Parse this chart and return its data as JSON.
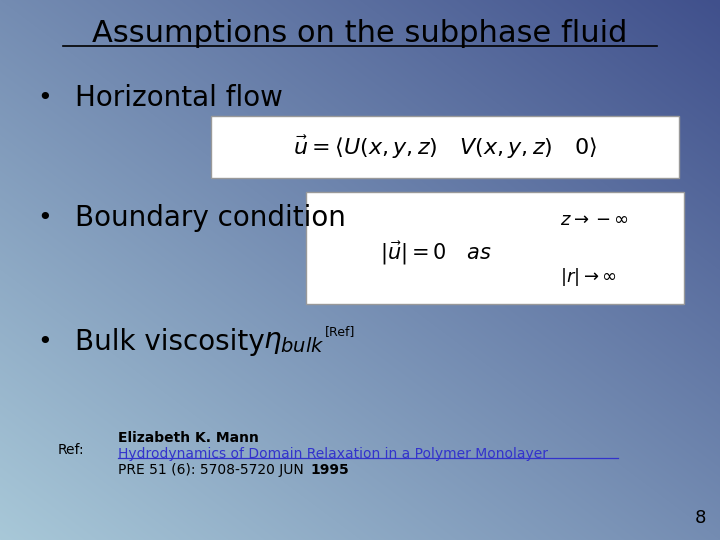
{
  "title": "Assumptions on the subphase fluid",
  "bullet1": "Horizontal flow",
  "bullet2": "Boundary condition",
  "bullet3": "Bulk viscosity ",
  "bullet3_ref": "[Ref]",
  "ref_label": "Ref:",
  "ref_author": "Elizabeth K. Mann",
  "ref_title": "Hydrodynamics of Domain Relaxation in a Polymer Monolayer",
  "ref_journal": "PRE 51 (6): 5708-5720 JUN ",
  "ref_year": "1995",
  "slide_number": "8",
  "link_color": "#3333cc",
  "bg_tl": [
    168,
    200,
    216
  ],
  "bg_br": [
    64,
    80,
    140
  ]
}
